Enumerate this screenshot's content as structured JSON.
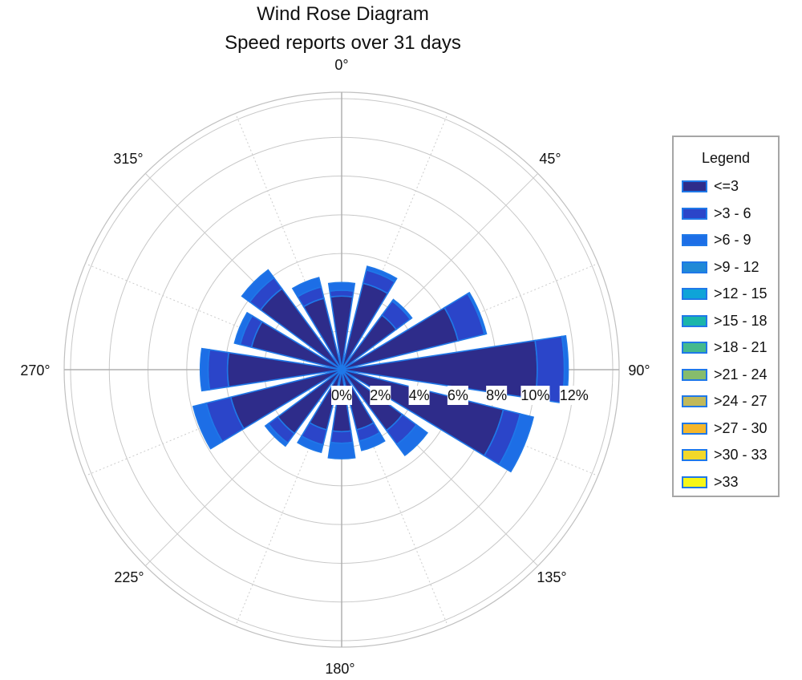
{
  "chart_data": {
    "type": "wind-rose",
    "title": "Wind Rose Diagram",
    "subtitle": "Speed reports over 31 days",
    "direction_labels": [
      "0°",
      "45°",
      "90°",
      "135°",
      "180°",
      "225°",
      "270°",
      "315°"
    ],
    "radial_tick_labels": [
      "0%",
      "2%",
      "4%",
      "6%",
      "8%",
      "10%",
      "12%"
    ],
    "radial_ticks": [
      0,
      2,
      4,
      6,
      8,
      10,
      12
    ],
    "radial_max": 12,
    "legend_title": "Legend",
    "speed_bins": [
      {
        "label": "<=3",
        "color": "#2e2c8a"
      },
      {
        "label": ">3 - 6",
        "color": "#2b45c9"
      },
      {
        "label": ">6 - 9",
        "color": "#1d6ee6"
      },
      {
        "label": ">9 - 12",
        "color": "#2089d6"
      },
      {
        "label": ">12 - 15",
        "color": "#0ea4d8"
      },
      {
        "label": ">15 - 18",
        "color": "#1ab5aa"
      },
      {
        "label": ">18 - 21",
        "color": "#44b98d"
      },
      {
        "label": ">21 - 24",
        "color": "#86bc6c"
      },
      {
        "label": ">24 - 27",
        "color": "#c1b95a"
      },
      {
        "label": ">27 - 30",
        "color": "#f6b72a"
      },
      {
        "label": ">30 - 33",
        "color": "#f2d82a"
      },
      {
        "label": ">33",
        "color": "#f7f718"
      }
    ],
    "sectors": [
      {
        "direction": 0,
        "values": [
          3.8,
          0.3,
          0.4
        ]
      },
      {
        "direction": 22.5,
        "values": [
          4.6,
          0.7,
          0.2
        ]
      },
      {
        "direction": 45,
        "values": [
          3.5,
          0.9,
          0.1
        ]
      },
      {
        "direction": 67.5,
        "values": [
          6.2,
          1.4,
          0.1
        ]
      },
      {
        "direction": 90,
        "values": [
          10.1,
          1.4,
          0.2
        ]
      },
      {
        "direction": 112.5,
        "values": [
          8.6,
          0.9,
          0.7
        ]
      },
      {
        "direction": 135,
        "values": [
          3.9,
          0.9,
          0.7
        ]
      },
      {
        "direction": 157.5,
        "values": [
          3.2,
          0.6,
          0.5
        ]
      },
      {
        "direction": 180,
        "values": [
          3.2,
          0.6,
          0.8
        ]
      },
      {
        "direction": 202.5,
        "values": [
          3.2,
          0.8,
          0.4
        ]
      },
      {
        "direction": 225,
        "values": [
          4.1,
          0.6,
          0.2
        ]
      },
      {
        "direction": 247.5,
        "values": [
          5.9,
          1.3,
          0.7
        ]
      },
      {
        "direction": 270,
        "values": [
          5.9,
          1.0,
          0.4
        ]
      },
      {
        "direction": 292.5,
        "values": [
          4.8,
          0.6,
          0.3
        ]
      },
      {
        "direction": 315,
        "values": [
          5.2,
          0.7,
          0.5
        ]
      },
      {
        "direction": 337.5,
        "values": [
          3.8,
          0.6,
          0.5
        ]
      }
    ]
  }
}
